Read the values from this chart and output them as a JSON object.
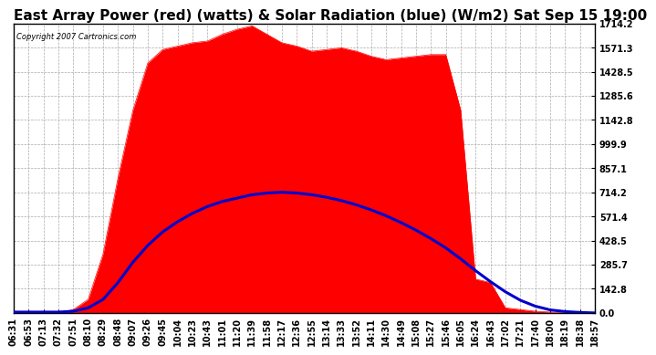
{
  "title": "East Array Power (red) (watts) & Solar Radiation (blue) (W/m2) Sat Sep 15 19:00",
  "copyright": "Copyright 2007 Cartronics.com",
  "ymax": 1714.2,
  "ymin": 0.0,
  "yticks": [
    0.0,
    142.8,
    285.7,
    428.5,
    571.4,
    714.2,
    857.1,
    999.9,
    1142.8,
    1285.6,
    1428.5,
    1571.3,
    1714.2
  ],
  "xtick_labels": [
    "06:31",
    "06:53",
    "07:13",
    "07:32",
    "07:51",
    "08:10",
    "08:29",
    "08:48",
    "09:07",
    "09:26",
    "09:45",
    "10:04",
    "10:23",
    "10:43",
    "11:01",
    "11:20",
    "11:39",
    "11:58",
    "12:17",
    "12:36",
    "12:55",
    "13:14",
    "13:33",
    "13:52",
    "14:11",
    "14:30",
    "14:49",
    "15:08",
    "15:27",
    "15:46",
    "16:05",
    "16:24",
    "16:43",
    "17:02",
    "17:21",
    "17:40",
    "18:00",
    "18:19",
    "18:38",
    "18:57"
  ],
  "bg_color": "#ffffff",
  "plot_bg": "#ffffff",
  "grid_color": "#aaaaaa",
  "red_color": "#ff0000",
  "blue_color": "#0000cc",
  "title_fontsize": 11,
  "tick_fontsize": 7.0,
  "power_values": [
    0,
    0,
    0,
    0,
    20,
    80,
    350,
    800,
    1200,
    1480,
    1560,
    1580,
    1600,
    1610,
    1650,
    1680,
    1700,
    1650,
    1600,
    1580,
    1550,
    1560,
    1570,
    1550,
    1520,
    1500,
    1510,
    1520,
    1530,
    1530,
    1200,
    200,
    180,
    30,
    20,
    10,
    5,
    2,
    0,
    0
  ],
  "solar_values": [
    5,
    5,
    5,
    5,
    10,
    30,
    80,
    180,
    300,
    400,
    480,
    540,
    590,
    630,
    660,
    680,
    700,
    710,
    715,
    710,
    700,
    685,
    665,
    640,
    610,
    575,
    535,
    490,
    440,
    385,
    320,
    250,
    185,
    125,
    75,
    40,
    18,
    8,
    3,
    0
  ]
}
